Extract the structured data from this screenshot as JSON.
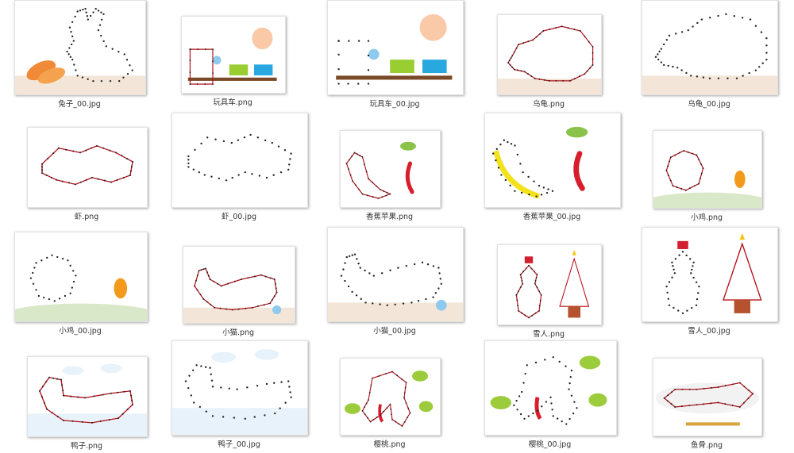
{
  "files": [
    {
      "name": "兔子_00.jpg",
      "subject": "rabbit",
      "variant": "dots"
    },
    {
      "name": "玩具车.png",
      "subject": "train",
      "variant": "lines"
    },
    {
      "name": "玩具车_00.jpg",
      "subject": "train",
      "variant": "dots"
    },
    {
      "name": "乌龟.png",
      "subject": "turtle",
      "variant": "lines"
    },
    {
      "name": "乌龟_00.jpg",
      "subject": "turtle",
      "variant": "dots"
    },
    {
      "name": "虾.png",
      "subject": "shrimp",
      "variant": "lines"
    },
    {
      "name": "虾_00.jpg",
      "subject": "shrimp",
      "variant": "dots"
    },
    {
      "name": "香蕉苹果.png",
      "subject": "fruit",
      "variant": "lines"
    },
    {
      "name": "香蕉苹果_00.jpg",
      "subject": "fruit",
      "variant": "dots"
    },
    {
      "name": "小鸡.png",
      "subject": "chick",
      "variant": "lines"
    },
    {
      "name": "小鸡_00.jpg",
      "subject": "chick",
      "variant": "dots"
    },
    {
      "name": "小猫.png",
      "subject": "cat",
      "variant": "lines"
    },
    {
      "name": "小猫_00.jpg",
      "subject": "cat",
      "variant": "dots"
    },
    {
      "name": "雪人.png",
      "subject": "snowman",
      "variant": "lines"
    },
    {
      "name": "雪人_00.jpg",
      "subject": "snowman",
      "variant": "dots"
    },
    {
      "name": "鸭子.png",
      "subject": "duck",
      "variant": "lines"
    },
    {
      "name": "鸭子_00.jpg",
      "subject": "duck",
      "variant": "dots"
    },
    {
      "name": "樱桃.png",
      "subject": "cherry",
      "variant": "lines"
    },
    {
      "name": "樱桃_00.jpg",
      "subject": "cherry",
      "variant": "dots"
    },
    {
      "name": "鱼骨.png",
      "subject": "fishbone",
      "variant": "lines"
    }
  ],
  "colors": {
    "line": "#b80f18",
    "dot": "#222222",
    "ground": "#f3e6d8",
    "water": "#e8f2fa",
    "grass": "#d8e8c8"
  }
}
